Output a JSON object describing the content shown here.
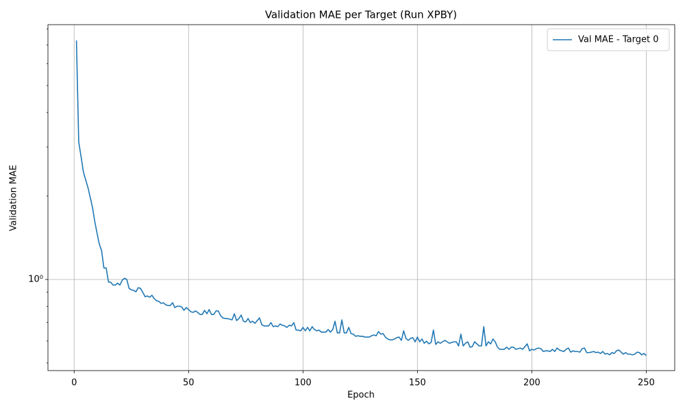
{
  "chart_data": {
    "type": "line",
    "title": "Validation MAE per Target (Run XPBY)",
    "x_label": "Epoch",
    "y_label": "Validation MAE",
    "x": [
      1,
      2,
      3,
      4,
      5,
      6,
      7,
      8,
      9,
      10,
      11,
      12,
      13,
      14,
      15,
      16,
      17,
      18,
      19,
      20,
      21,
      22,
      23,
      24,
      25,
      26,
      27,
      28,
      29,
      30,
      31,
      32,
      33,
      34,
      35,
      36,
      37,
      38,
      39,
      40,
      41,
      42,
      43,
      44,
      45,
      46,
      47,
      48,
      49,
      50,
      51,
      52,
      53,
      54,
      55,
      56,
      57,
      58,
      59,
      60,
      61,
      62,
      63,
      64,
      65,
      66,
      67,
      68,
      69,
      70,
      71,
      72,
      73,
      74,
      75,
      76,
      77,
      78,
      79,
      80,
      81,
      82,
      83,
      84,
      85,
      86,
      87,
      88,
      89,
      90,
      91,
      92,
      93,
      94,
      95,
      96,
      97,
      98,
      99,
      100,
      101,
      102,
      103,
      104,
      105,
      106,
      107,
      108,
      109,
      110,
      111,
      112,
      113,
      114,
      115,
      116,
      117,
      118,
      119,
      120,
      121,
      122,
      123,
      124,
      125,
      126,
      127,
      128,
      129,
      130,
      131,
      132,
      133,
      134,
      135,
      136,
      137,
      138,
      139,
      140,
      141,
      142,
      143,
      144,
      145,
      146,
      147,
      148,
      149,
      150,
      151,
      152,
      153,
      154,
      155,
      156,
      157,
      158,
      159,
      160,
      161,
      162,
      163,
      164,
      165,
      166,
      167,
      168,
      169,
      170,
      171,
      172,
      173,
      174,
      175,
      176,
      177,
      178,
      179,
      180,
      181,
      182,
      183,
      184,
      185,
      186,
      187,
      188,
      189,
      190,
      191,
      192,
      193,
      194,
      195,
      196,
      197,
      198,
      199,
      200,
      201,
      202,
      203,
      204,
      205,
      206,
      207,
      208,
      209,
      210,
      211,
      212,
      213,
      214,
      215,
      216,
      217,
      218,
      219,
      220,
      221,
      222,
      223,
      224,
      225,
      226,
      227,
      228,
      229,
      230,
      231,
      232,
      233,
      234,
      235,
      236,
      237,
      238,
      239,
      240,
      241,
      242,
      243,
      244,
      245,
      246,
      247,
      248,
      249,
      250
    ],
    "series": [
      {
        "name": "Val MAE - Target 0",
        "color": "#1f77b4",
        "values": [
          7.27,
          3.13,
          2.78,
          2.45,
          2.29,
          2.15,
          1.98,
          1.82,
          1.62,
          1.47,
          1.34,
          1.27,
          1.1,
          1.1,
          0.98,
          0.977,
          0.955,
          0.955,
          0.97,
          0.955,
          0.994,
          1.01,
          1.0,
          0.929,
          0.918,
          0.913,
          0.903,
          0.934,
          0.929,
          0.898,
          0.867,
          0.872,
          0.863,
          0.877,
          0.853,
          0.838,
          0.834,
          0.82,
          0.824,
          0.81,
          0.806,
          0.806,
          0.824,
          0.792,
          0.801,
          0.801,
          0.796,
          0.774,
          0.792,
          0.779,
          0.765,
          0.761,
          0.77,
          0.761,
          0.748,
          0.748,
          0.774,
          0.752,
          0.779,
          0.748,
          0.748,
          0.77,
          0.77,
          0.74,
          0.727,
          0.723,
          0.723,
          0.719,
          0.715,
          0.752,
          0.711,
          0.723,
          0.744,
          0.707,
          0.703,
          0.723,
          0.699,
          0.707,
          0.695,
          0.711,
          0.727,
          0.687,
          0.68,
          0.68,
          0.68,
          0.699,
          0.676,
          0.68,
          0.676,
          0.691,
          0.684,
          0.68,
          0.672,
          0.684,
          0.68,
          0.699,
          0.657,
          0.657,
          0.653,
          0.672,
          0.653,
          0.672,
          0.653,
          0.676,
          0.66,
          0.653,
          0.657,
          0.646,
          0.646,
          0.646,
          0.66,
          0.646,
          0.66,
          0.707,
          0.642,
          0.642,
          0.715,
          0.642,
          0.642,
          0.672,
          0.638,
          0.635,
          0.624,
          0.627,
          0.624,
          0.624,
          0.62,
          0.62,
          0.62,
          0.627,
          0.631,
          0.627,
          0.649,
          0.635,
          0.638,
          0.62,
          0.61,
          0.606,
          0.606,
          0.61,
          0.617,
          0.62,
          0.603,
          0.653,
          0.613,
          0.603,
          0.613,
          0.617,
          0.596,
          0.62,
          0.596,
          0.61,
          0.589,
          0.599,
          0.586,
          0.593,
          0.657,
          0.583,
          0.596,
          0.589,
          0.596,
          0.603,
          0.596,
          0.589,
          0.593,
          0.596,
          0.596,
          0.576,
          0.635,
          0.576,
          0.589,
          0.596,
          0.57,
          0.573,
          0.596,
          0.586,
          0.576,
          0.576,
          0.676,
          0.576,
          0.596,
          0.586,
          0.61,
          0.596,
          0.57,
          0.56,
          0.56,
          0.56,
          0.57,
          0.56,
          0.57,
          0.57,
          0.56,
          0.563,
          0.566,
          0.56,
          0.573,
          0.586,
          0.553,
          0.56,
          0.557,
          0.563,
          0.566,
          0.563,
          0.55,
          0.553,
          0.553,
          0.55,
          0.56,
          0.55,
          0.566,
          0.557,
          0.553,
          0.55,
          0.56,
          0.566,
          0.547,
          0.553,
          0.55,
          0.55,
          0.547,
          0.563,
          0.566,
          0.545,
          0.545,
          0.547,
          0.55,
          0.545,
          0.547,
          0.541,
          0.55,
          0.538,
          0.541,
          0.535,
          0.545,
          0.541,
          0.553,
          0.557,
          0.547,
          0.538,
          0.545,
          0.538,
          0.538,
          0.535,
          0.538,
          0.547,
          0.545,
          0.535,
          0.541,
          0.532
        ]
      }
    ],
    "xlim": [
      -11.45,
      262.45
    ],
    "xticks": [
      0,
      50,
      100,
      150,
      200,
      250
    ],
    "ylim": [
      0.4694,
      8.29
    ],
    "y_scale": "log",
    "yticks": [
      {
        "value": 1,
        "label": "10⁰"
      }
    ],
    "yminorticks": [
      0.5,
      0.6,
      0.7,
      0.8,
      0.9,
      2,
      3,
      4,
      5,
      6,
      7,
      8
    ],
    "grid": true,
    "legend": "upper right"
  }
}
